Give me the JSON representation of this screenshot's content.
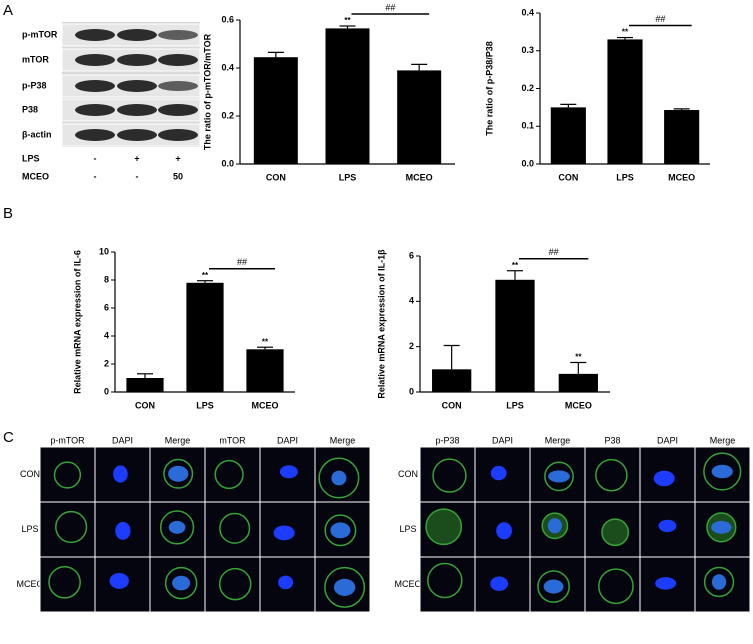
{
  "panel_labels": [
    "A",
    "B",
    "C"
  ],
  "blot": {
    "rows": [
      "p-mTOR",
      "mTOR",
      "p-P38",
      "P38",
      "β-actin"
    ],
    "treatments": [
      {
        "name": "LPS",
        "levels": [
          "-",
          "+",
          "+"
        ]
      },
      {
        "name": "MCEO",
        "levels": [
          "-",
          "-",
          "50"
        ]
      }
    ]
  },
  "chart_data": [
    {
      "type": "bar",
      "y_label": "The ratio of p-mTOR/mTOR",
      "categories": [
        "CON",
        "LPS",
        "MCEO"
      ],
      "values": [
        0.445,
        0.565,
        0.39
      ],
      "errors": [
        0.02,
        0.01,
        0.025
      ],
      "annotations": [
        null,
        "**",
        null
      ],
      "comparison_label": "##",
      "color": "#000000",
      "ylim": [
        0,
        0.6
      ],
      "yticks": [
        {
          "value": 0,
          "label": "0.0"
        },
        0.2,
        0.4,
        0.6
      ]
    },
    {
      "type": "bar",
      "y_label": "The ratio of p-P38/P38",
      "categories": [
        "CON",
        "LPS",
        "MCEO"
      ],
      "values": [
        0.15,
        0.33,
        0.143
      ],
      "errors": [
        0.008,
        0.005,
        0.003
      ],
      "annotations": [
        null,
        "**",
        null
      ],
      "comparison_label": "##",
      "color": "#000000",
      "ylim": [
        0,
        0.4
      ],
      "yticks": [
        {
          "value": 0,
          "label": "0.0"
        },
        0.1,
        0.2,
        0.3,
        0.4
      ]
    },
    {
      "type": "bar",
      "y_label": "Relative mRNA expression of IL-6",
      "categories": [
        "CON",
        "LPS",
        "MCEO"
      ],
      "values": [
        1.0,
        7.8,
        3.05
      ],
      "errors": [
        0.3,
        0.15,
        0.15
      ],
      "annotations": [
        null,
        "**",
        "**"
      ],
      "comparison_label": "##",
      "color": "#000000",
      "ylim": [
        0,
        10
      ],
      "yticks": [
        0,
        2,
        4,
        6,
        8,
        10
      ]
    },
    {
      "type": "bar",
      "y_label": "Relative mRNA expression of IL-1β",
      "categories": [
        "CON",
        "LPS",
        "MCEO"
      ],
      "values": [
        1.0,
        4.95,
        0.8
      ],
      "errors": [
        1.05,
        0.4,
        0.5
      ],
      "annotations": [
        null,
        "**",
        "**"
      ],
      "comparison_label": "##",
      "color": "#000000",
      "ylim": [
        0,
        6
      ],
      "yticks": [
        0,
        2,
        4,
        6
      ]
    }
  ],
  "microscopy": [
    {
      "columns": [
        "p-mTOR",
        "DAPI",
        "Merge",
        "mTOR",
        "DAPI",
        "Merge"
      ],
      "rows": [
        "CON",
        "LPS",
        "MCEO"
      ]
    },
    {
      "columns": [
        "p-P38",
        "DAPI",
        "Merge",
        "P38",
        "DAPI",
        "Merge"
      ],
      "rows": [
        "CON",
        "LPS",
        "MCEO"
      ]
    }
  ]
}
